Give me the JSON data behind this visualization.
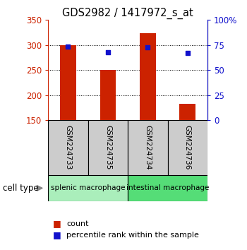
{
  "title": "GDS2982 / 1417972_s_at",
  "samples": [
    "GSM224733",
    "GSM224735",
    "GSM224734",
    "GSM224736"
  ],
  "counts": [
    300,
    250,
    323,
    183
  ],
  "percentiles": [
    73.5,
    67.5,
    72.5,
    67.0
  ],
  "ylim_left": [
    150,
    350
  ],
  "ylim_right": [
    0,
    100
  ],
  "bar_color": "#cc2200",
  "dot_color": "#1111cc",
  "bar_width": 0.4,
  "groups": [
    {
      "label": "splenic macrophage",
      "color": "#aaeebb",
      "indices": [
        0,
        1
      ]
    },
    {
      "label": "intestinal macrophage",
      "color": "#55dd77",
      "indices": [
        2,
        3
      ]
    }
  ],
  "sample_box_color": "#cccccc",
  "yticks_left": [
    150,
    200,
    250,
    300,
    350
  ],
  "yticks_right": [
    0,
    25,
    50,
    75,
    100
  ],
  "ytick_labels_right": [
    "0",
    "25",
    "50",
    "75",
    "100%"
  ],
  "grid_lines": [
    200,
    250,
    300
  ],
  "legend_count_label": "count",
  "legend_percentile_label": "percentile rank within the sample",
  "cell_type_label": "cell type"
}
